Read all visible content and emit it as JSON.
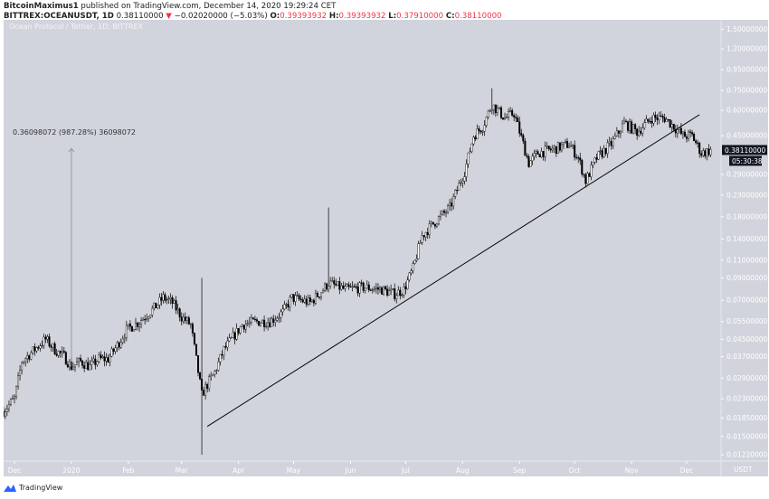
{
  "header": {
    "author": "BitcoinMaximus1",
    "published": "published on TradingView.com, December 14, 2020 19:29:24 CET",
    "symbol": "BITTREX:OCEANUSDT, 1D",
    "last": "0.38110000",
    "change": "−0.02020000 (−5.03%)",
    "o_label": "O:",
    "o": "0.39393932",
    "h_label": "H:",
    "h": "0.39393932",
    "l_label": "L:",
    "l": "0.37910000",
    "c_label": "C:",
    "c": "0.38110000",
    "down_color": "#f23645"
  },
  "chart_legend": "Ocean Protocol / Tether, 1D, BITTREX",
  "measure_label": "0.36098072 (987.28%) 36098072",
  "price_axis": {
    "unit": "USDT",
    "ticks": [
      "1.50000000",
      "1.20000000",
      "0.95000000",
      "0.75000000",
      "0.60000000",
      "0.45000000",
      "0.29000000",
      "0.23000000",
      "0.18000000",
      "0.14000000",
      "0.11000000",
      "0.09000000",
      "0.07000000",
      "0.05500000",
      "0.04500000",
      "0.03700000",
      "0.02900000",
      "0.02300000",
      "0.01850000",
      "0.01500000",
      "0.01220000"
    ],
    "last_price_label": "0.38110000",
    "countdown": "05:30:38"
  },
  "time_axis": [
    "Dec",
    "2020",
    "Feb",
    "Mar",
    "Apr",
    "May",
    "Jun",
    "Jul",
    "Aug",
    "Sep",
    "Oct",
    "Nov",
    "Dec"
  ],
  "footer": {
    "brand": "TradingView",
    "brand_color": "#2962ff"
  },
  "chart_data": {
    "type": "candlestick",
    "scale": "log",
    "ylim": [
      0.0122,
      1.5
    ],
    "grid": false,
    "colors": {
      "background": "#d1d4dc",
      "candle": "#000000",
      "axis_text": "#ffffff"
    },
    "approx_closes": [
      [
        "2019-11-25",
        0.02
      ],
      [
        "2019-12-01",
        0.023
      ],
      [
        "2019-12-05",
        0.035
      ],
      [
        "2019-12-13",
        0.041
      ],
      [
        "2019-12-18",
        0.045
      ],
      [
        "2019-12-23",
        0.04
      ],
      [
        "2019-12-28",
        0.037
      ],
      [
        "2020-01-01",
        0.033
      ],
      [
        "2020-01-06",
        0.035
      ],
      [
        "2020-01-11",
        0.033
      ],
      [
        "2020-01-16",
        0.036
      ],
      [
        "2020-01-21",
        0.036
      ],
      [
        "2020-01-26",
        0.042
      ],
      [
        "2020-01-31",
        0.05
      ],
      [
        "2020-02-07",
        0.055
      ],
      [
        "2020-02-15",
        0.064
      ],
      [
        "2020-02-20",
        0.072
      ],
      [
        "2020-02-25",
        0.068
      ],
      [
        "2020-03-01",
        0.058
      ],
      [
        "2020-03-06",
        0.053
      ],
      [
        "2020-03-12",
        0.024
      ],
      [
        "2020-03-14",
        0.026
      ],
      [
        "2020-03-19",
        0.031
      ],
      [
        "2020-03-24",
        0.04
      ],
      [
        "2020-03-29",
        0.046
      ],
      [
        "2020-04-03",
        0.053
      ],
      [
        "2020-04-11",
        0.055
      ],
      [
        "2020-04-18",
        0.055
      ],
      [
        "2020-04-25",
        0.061
      ],
      [
        "2020-04-30",
        0.072
      ],
      [
        "2020-05-10",
        0.068
      ],
      [
        "2020-05-17",
        0.079
      ],
      [
        "2020-05-20",
        0.085
      ],
      [
        "2020-05-29",
        0.079
      ],
      [
        "2020-06-08",
        0.081
      ],
      [
        "2020-06-18",
        0.079
      ],
      [
        "2020-06-25",
        0.075
      ],
      [
        "2020-06-30",
        0.079
      ],
      [
        "2020-07-05",
        0.1
      ],
      [
        "2020-07-10",
        0.145
      ],
      [
        "2020-07-17",
        0.17
      ],
      [
        "2020-07-25",
        0.199
      ],
      [
        "2020-08-02",
        0.3
      ],
      [
        "2020-08-07",
        0.45
      ],
      [
        "2020-08-12",
        0.5
      ],
      [
        "2020-08-17",
        0.64
      ],
      [
        "2020-08-24",
        0.55
      ],
      [
        "2020-08-29",
        0.58
      ],
      [
        "2020-09-03",
        0.41
      ],
      [
        "2020-09-06",
        0.33
      ],
      [
        "2020-09-11",
        0.37
      ],
      [
        "2020-09-21",
        0.39
      ],
      [
        "2020-09-28",
        0.41
      ],
      [
        "2020-10-03",
        0.35
      ],
      [
        "2020-10-07",
        0.27
      ],
      [
        "2020-10-13",
        0.35
      ],
      [
        "2020-10-21",
        0.41
      ],
      [
        "2020-10-28",
        0.52
      ],
      [
        "2020-11-04",
        0.47
      ],
      [
        "2020-11-12",
        0.55
      ],
      [
        "2020-11-19",
        0.55
      ],
      [
        "2020-11-24",
        0.5
      ],
      [
        "2020-11-29",
        0.45
      ],
      [
        "2020-12-04",
        0.45
      ],
      [
        "2020-12-09",
        0.37
      ],
      [
        "2020-12-14",
        0.3811
      ]
    ],
    "extreme_wicks": [
      {
        "date": "2020-03-12",
        "low": 0.0122,
        "high": 0.09
      },
      {
        "date": "2020-05-20",
        "high": 0.2
      },
      {
        "date": "2020-08-17",
        "high": 0.77
      },
      {
        "date": "2020-10-07",
        "low": 0.25
      }
    ],
    "trendline": {
      "from": [
        "2020-03-15",
        0.0168
      ],
      "to": [
        "2020-12-08",
        0.571
      ]
    },
    "measure": {
      "date": "2020-01-01",
      "from": 0.033,
      "to": 0.39
    }
  }
}
